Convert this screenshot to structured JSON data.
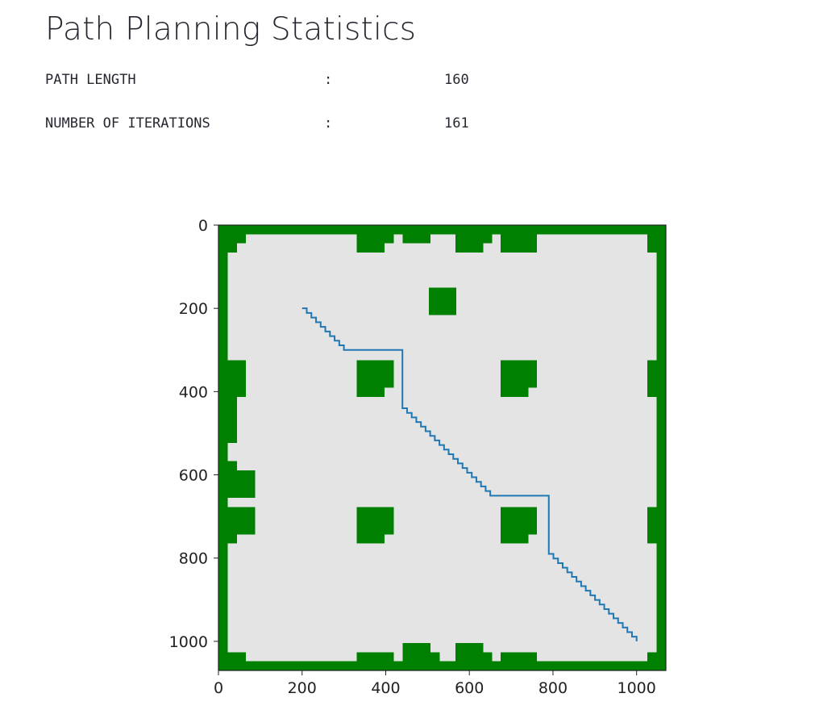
{
  "title": "Path Planning Statistics",
  "stats": [
    {
      "label": "PATH LENGTH",
      "separator": ":",
      "value": "160"
    },
    {
      "label": "NUMBER OF ITERATIONS",
      "separator": ":",
      "value": "161"
    }
  ],
  "colors": {
    "obstacle": "#008000",
    "free": "#e4e4e4",
    "path": "#1f77b4"
  },
  "chart_data": {
    "type": "heatmap",
    "description_type": "occupancy grid with planned path",
    "xlim": [
      0,
      1070
    ],
    "ylim": [
      1070,
      0
    ],
    "xticks": [
      0,
      200,
      400,
      600,
      800,
      1000
    ],
    "yticks": [
      0,
      200,
      400,
      600,
      800,
      1000
    ],
    "xtick_labels": [
      "0",
      "200",
      "400",
      "600",
      "800",
      "1000"
    ],
    "ytick_labels": [
      "0",
      "200",
      "400",
      "600",
      "800",
      "1000"
    ],
    "obstacles": [
      [
        0,
        0,
        1070,
        22
      ],
      [
        0,
        1048,
        1070,
        22
      ],
      [
        0,
        0,
        22,
        1070
      ],
      [
        1048,
        0,
        22,
        1070
      ],
      [
        22,
        22,
        44,
        22
      ],
      [
        22,
        44,
        22,
        22
      ],
      [
        1026,
        22,
        22,
        22
      ],
      [
        1026,
        44,
        22,
        22
      ],
      [
        331,
        22,
        66,
        44
      ],
      [
        397,
        22,
        22,
        22
      ],
      [
        441,
        22,
        66,
        22
      ],
      [
        567,
        22,
        66,
        44
      ],
      [
        633,
        22,
        22,
        22
      ],
      [
        675,
        22,
        87,
        44
      ],
      [
        503,
        150,
        66,
        66
      ],
      [
        22,
        325,
        44,
        66
      ],
      [
        22,
        391,
        44,
        22
      ],
      [
        22,
        413,
        22,
        110
      ],
      [
        331,
        325,
        88,
        66
      ],
      [
        331,
        391,
        66,
        22
      ],
      [
        675,
        325,
        87,
        66
      ],
      [
        675,
        391,
        66,
        22
      ],
      [
        1026,
        325,
        22,
        88
      ],
      [
        22,
        567,
        22,
        22
      ],
      [
        22,
        589,
        66,
        66
      ],
      [
        22,
        677,
        66,
        66
      ],
      [
        22,
        743,
        22,
        22
      ],
      [
        331,
        677,
        88,
        66
      ],
      [
        331,
        743,
        66,
        22
      ],
      [
        675,
        677,
        87,
        66
      ],
      [
        675,
        743,
        66,
        22
      ],
      [
        1026,
        677,
        22,
        88
      ],
      [
        331,
        1026,
        88,
        22
      ],
      [
        441,
        1004,
        66,
        44
      ],
      [
        507,
        1026,
        22,
        22
      ],
      [
        567,
        1004,
        66,
        44
      ],
      [
        633,
        1026,
        22,
        22
      ],
      [
        675,
        1026,
        87,
        22
      ],
      [
        22,
        1026,
        44,
        22
      ],
      [
        1026,
        1026,
        22,
        22
      ]
    ],
    "path": {
      "start": [
        200,
        200
      ],
      "points": [
        [
          200,
          200
        ],
        [
          300,
          300
        ],
        [
          440,
          300
        ],
        [
          440,
          440
        ],
        [
          650,
          650
        ],
        [
          790,
          650
        ],
        [
          790,
          790
        ],
        [
          1000,
          1000
        ]
      ]
    }
  }
}
